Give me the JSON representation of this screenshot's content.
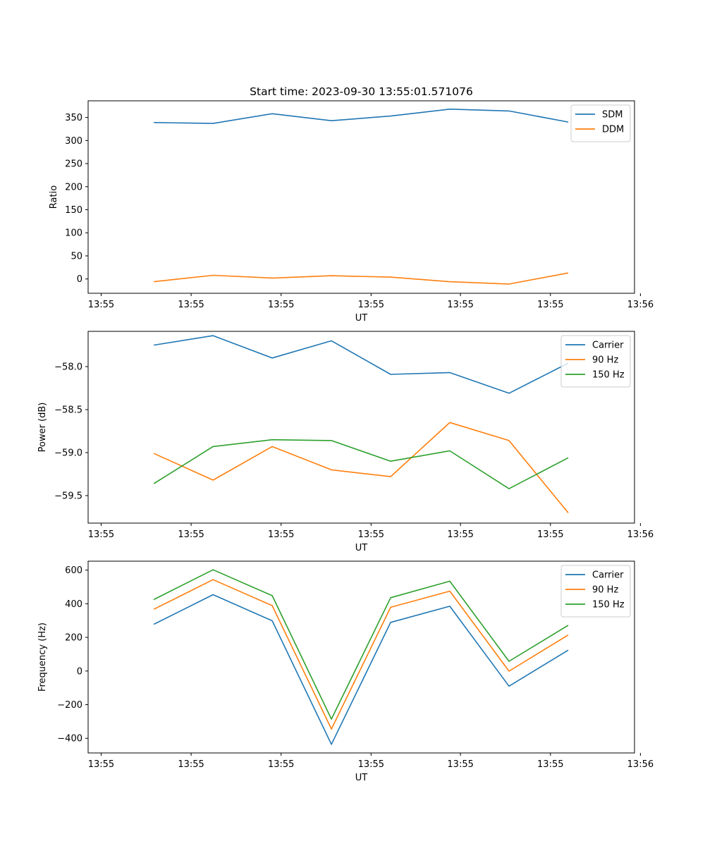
{
  "chart_data": [
    {
      "type": "line",
      "title": "Start time: 2023-09-30 13:55:01.571076",
      "xlabel": "UT",
      "ylabel": "Ratio",
      "x_tick_labels": [
        "13:55",
        "13:55",
        "13:55",
        "13:55",
        "13:55",
        "13:55",
        "13:56"
      ],
      "x": [
        1,
        2,
        3,
        4,
        5,
        6,
        7,
        8
      ],
      "xlim": [
        -0.11,
        9.12
      ],
      "ylim": [
        -31,
        386
      ],
      "yticks": [
        0,
        50,
        100,
        150,
        200,
        250,
        300,
        350
      ],
      "legend_position": "top-right",
      "series": [
        {
          "name": "SDM",
          "color": "#1f77b4",
          "values": [
            339,
            337,
            358,
            343,
            353,
            368,
            364,
            340
          ]
        },
        {
          "name": "DDM",
          "color": "#ff7f0e",
          "values": [
            -6,
            8,
            2,
            7,
            4,
            -6,
            -11,
            13
          ]
        }
      ]
    },
    {
      "type": "line",
      "title": "",
      "xlabel": "UT",
      "ylabel": "Power (dB)",
      "x_tick_labels": [
        "13:55",
        "13:55",
        "13:55",
        "13:55",
        "13:55",
        "13:55",
        "13:56"
      ],
      "x": [
        1,
        2,
        3,
        4,
        5,
        6,
        7,
        8
      ],
      "xlim": [
        -0.11,
        9.12
      ],
      "ylim": [
        -59.82,
        -57.59
      ],
      "yticks": [
        -59.5,
        -59.0,
        -58.5,
        -58.0
      ],
      "ytick_labels": [
        "−59.5",
        "−59.0",
        "−58.5",
        "−58.0"
      ],
      "legend_position": "top-right",
      "series": [
        {
          "name": "Carrier",
          "color": "#1f77b4",
          "values": [
            -57.75,
            -57.64,
            -57.9,
            -57.7,
            -58.09,
            -58.07,
            -58.31,
            -57.96
          ]
        },
        {
          "name": "90 Hz",
          "color": "#ff7f0e",
          "values": [
            -59.01,
            -59.32,
            -58.93,
            -59.2,
            -59.28,
            -58.65,
            -58.86,
            -59.7
          ]
        },
        {
          "name": "150 Hz",
          "color": "#2ca02c",
          "values": [
            -59.36,
            -58.93,
            -58.85,
            -58.86,
            -59.1,
            -58.98,
            -59.42,
            -59.06
          ]
        }
      ]
    },
    {
      "type": "line",
      "title": "",
      "xlabel": "UT",
      "ylabel": "Frequency (Hz)",
      "x_tick_labels": [
        "13:55",
        "13:55",
        "13:55",
        "13:55",
        "13:55",
        "13:55",
        "13:56"
      ],
      "x": [
        1,
        2,
        3,
        4,
        5,
        6,
        7,
        8
      ],
      "xlim": [
        -0.11,
        9.12
      ],
      "ylim": [
        -487,
        653
      ],
      "yticks": [
        -400,
        -200,
        0,
        200,
        400,
        600
      ],
      "ytick_labels": [
        "−400",
        "−200",
        "0",
        "200",
        "400",
        "600"
      ],
      "legend_position": "top-right",
      "series": [
        {
          "name": "Carrier",
          "color": "#1f77b4",
          "values": [
            278,
            454,
            299,
            -436,
            289,
            385,
            -90,
            124
          ]
        },
        {
          "name": "90 Hz",
          "color": "#ff7f0e",
          "values": [
            367,
            543,
            389,
            -345,
            379,
            475,
            -1,
            214
          ]
        },
        {
          "name": "150 Hz",
          "color": "#2ca02c",
          "values": [
            425,
            602,
            448,
            -286,
            436,
            534,
            58,
            272
          ]
        }
      ]
    }
  ]
}
